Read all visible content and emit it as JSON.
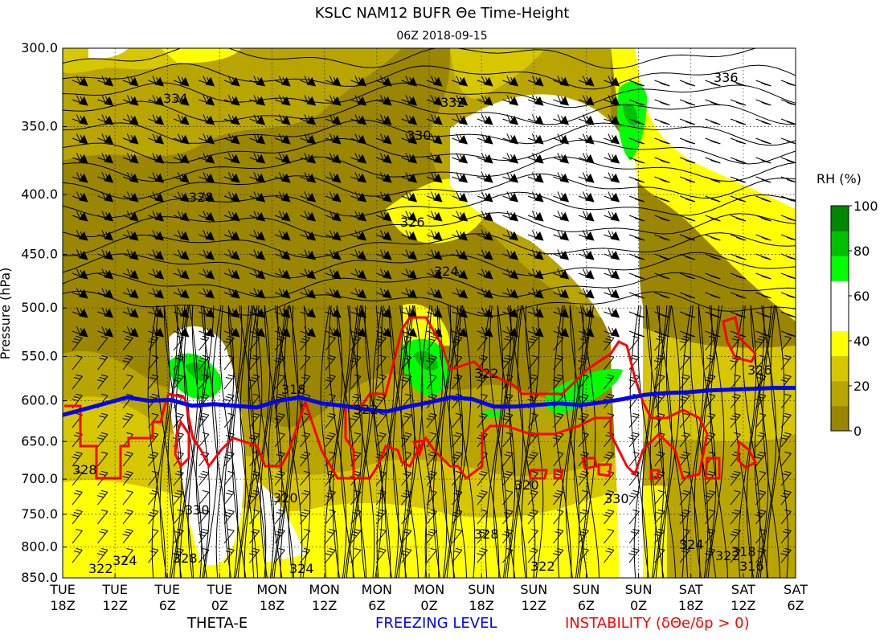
{
  "title": "KSLC NAM12 BUFR Θe Time-Height",
  "subtitle": "06Z 2018-09-15",
  "chart_data": {
    "type": "time-height",
    "ylabel": "Pressure (hPa)",
    "ylim": [
      850,
      300
    ],
    "y_ticks": [
      "300.0",
      "350.0",
      "400.0",
      "450.0",
      "500.0",
      "550.0",
      "600.0",
      "650.0",
      "700.0",
      "750.0",
      "800.0",
      "850.0"
    ],
    "x_ticks": [
      {
        "day": "TUE",
        "hour": "18Z"
      },
      {
        "day": "TUE",
        "hour": "12Z"
      },
      {
        "day": "TUE",
        "hour": "6Z"
      },
      {
        "day": "TUE",
        "hour": "0Z"
      },
      {
        "day": "MON",
        "hour": "18Z"
      },
      {
        "day": "MON",
        "hour": "12Z"
      },
      {
        "day": "MON",
        "hour": "6Z"
      },
      {
        "day": "MON",
        "hour": "0Z"
      },
      {
        "day": "SUN",
        "hour": "18Z"
      },
      {
        "day": "SUN",
        "hour": "12Z"
      },
      {
        "day": "SUN",
        "hour": "6Z"
      },
      {
        "day": "SUN",
        "hour": "0Z"
      },
      {
        "day": "SAT",
        "hour": "18Z"
      },
      {
        "day": "SAT",
        "hour": "12Z"
      },
      {
        "day": "SAT",
        "hour": "6Z"
      }
    ],
    "colorbar": {
      "label": "RH (%)",
      "ticks": [
        "0",
        "20",
        "40",
        "60",
        "80",
        "100"
      ],
      "colors": [
        "#9a8600",
        "#b9a500",
        "#d7c700",
        "#ffff00",
        "#ffffff",
        "#ffffff",
        "#00ff00",
        "#00c000",
        "#008800"
      ]
    },
    "theta_e_labels": [
      "336",
      "334",
      "332",
      "330",
      "328",
      "326",
      "324",
      "322",
      "320",
      "318",
      "316"
    ],
    "freezing_level_hpa": [
      617,
      610,
      603,
      596,
      600,
      599,
      606,
      604,
      606,
      608,
      600,
      596,
      603,
      606,
      610,
      613,
      607,
      602,
      596,
      598,
      607,
      607,
      605,
      603,
      605,
      602,
      598,
      593,
      591,
      590,
      588,
      587,
      586,
      585,
      585
    ],
    "legend": {
      "theta_e": "THETA-E",
      "freezing": "FREEZING LEVEL",
      "instability": "INSTABILITY (δΘe/δp > 0)"
    },
    "colors": {
      "freezing": "#0000ff",
      "instability": "#ff0000",
      "theta_e": "#000000"
    }
  }
}
